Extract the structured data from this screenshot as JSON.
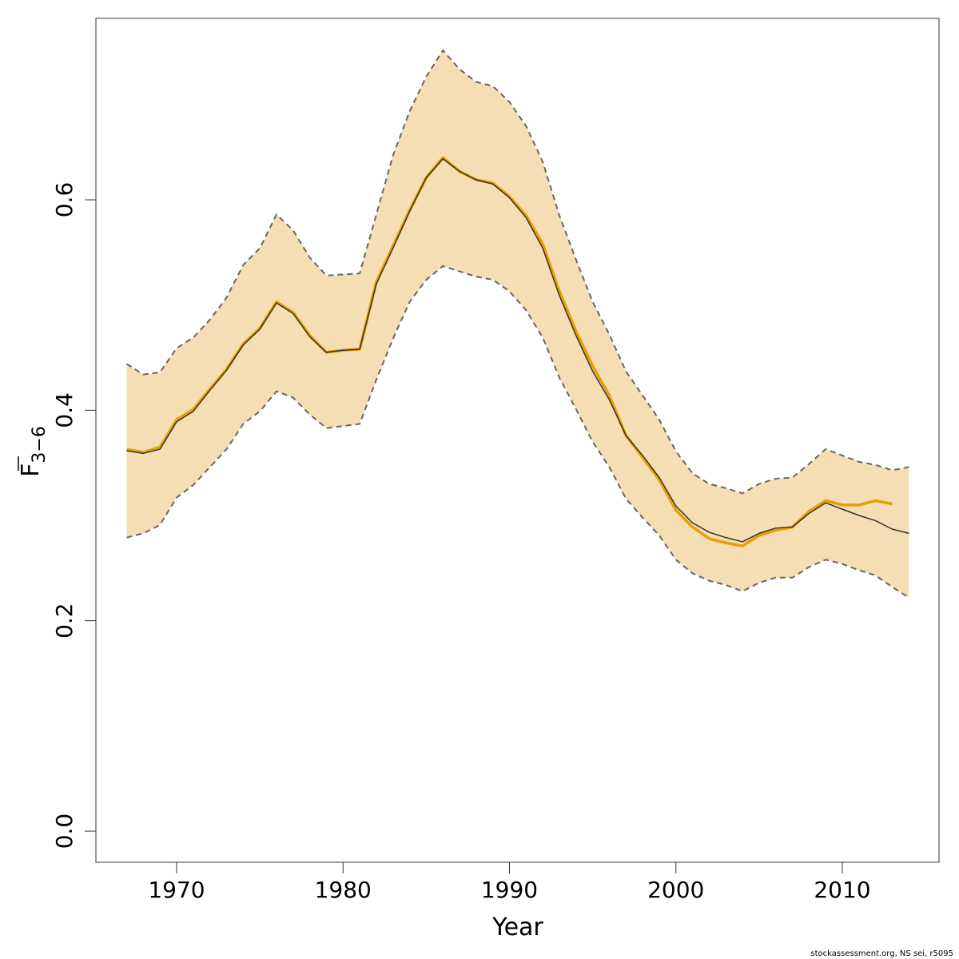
{
  "chart_data": {
    "type": "line",
    "xlabel": "Year",
    "ylabel": "F",
    "ylabel_sub": "3−6",
    "footnote": "stockassessment.org, NS sei, r5095",
    "xlim": [
      1965.15,
      2015.81
    ],
    "ylim": [
      -0.0296,
      0.7724
    ],
    "xticks": [
      1970,
      1980,
      1990,
      2000,
      2010
    ],
    "yticks": [
      {
        "value": 0,
        "label": "0.0"
      },
      0.2,
      0.4,
      0.6
    ],
    "x": [
      1967,
      1968,
      1969,
      1970,
      1971,
      1972,
      1973,
      1974,
      1975,
      1976,
      1977,
      1978,
      1979,
      1980,
      1981,
      1982,
      1983,
      1984,
      1985,
      1986,
      1987,
      1988,
      1989,
      1990,
      1991,
      1992,
      1993,
      1994,
      1995,
      1996,
      1997,
      1998,
      1999,
      2000,
      2001,
      2002,
      2003,
      2004,
      2005,
      2006,
      2007,
      2008,
      2009,
      2010,
      2011,
      2012,
      2013,
      2014
    ],
    "band": {
      "color": "#f5deb3",
      "line_color": "#666666",
      "upper": [
        0.444,
        0.434,
        0.436,
        0.459,
        0.469,
        0.486,
        0.507,
        0.538,
        0.554,
        0.586,
        0.571,
        0.545,
        0.528,
        0.529,
        0.53,
        0.586,
        0.642,
        0.684,
        0.717,
        0.742,
        0.724,
        0.712,
        0.708,
        0.693,
        0.67,
        0.636,
        0.585,
        0.543,
        0.503,
        0.472,
        0.437,
        0.414,
        0.391,
        0.361,
        0.34,
        0.33,
        0.326,
        0.321,
        0.33,
        0.335,
        0.336,
        0.349,
        0.363,
        0.357,
        0.351,
        0.348,
        0.343,
        0.346
      ],
      "lower": [
        0.279,
        0.283,
        0.291,
        0.317,
        0.329,
        0.346,
        0.363,
        0.387,
        0.399,
        0.418,
        0.412,
        0.396,
        0.383,
        0.385,
        0.387,
        0.429,
        0.468,
        0.503,
        0.524,
        0.537,
        0.532,
        0.527,
        0.524,
        0.513,
        0.495,
        0.469,
        0.431,
        0.401,
        0.37,
        0.346,
        0.316,
        0.298,
        0.281,
        0.258,
        0.245,
        0.238,
        0.234,
        0.228,
        0.236,
        0.241,
        0.241,
        0.251,
        0.258,
        0.254,
        0.248,
        0.243,
        0.232,
        0.222
      ]
    },
    "series": [
      {
        "color": "#e6a000",
        "width": 3.5,
        "values": [
          0.363,
          0.36,
          0.365,
          0.391,
          0.401,
          0.42,
          0.439,
          0.463,
          0.478,
          0.503,
          0.493,
          0.471,
          0.455,
          0.457,
          0.458,
          0.522,
          0.556,
          0.59,
          0.621,
          0.64,
          0.627,
          0.619,
          0.616,
          0.603,
          0.585,
          0.558,
          0.513,
          0.475,
          0.442,
          0.414,
          0.376,
          0.355,
          0.334,
          0.305,
          0.289,
          0.278,
          0.274,
          0.271,
          0.281,
          0.286,
          0.289,
          0.304,
          0.314,
          0.31,
          0.31,
          0.314,
          0.311,
          null
        ]
      },
      {
        "color": "#333333",
        "width": 1.5,
        "values": [
          0.3615,
          0.359,
          0.363,
          0.389,
          0.399,
          0.419,
          0.438,
          0.462,
          0.477,
          0.502,
          0.492,
          0.47,
          0.455,
          0.457,
          0.458,
          0.52,
          0.554,
          0.589,
          0.621,
          0.639,
          0.627,
          0.619,
          0.615,
          0.602,
          0.583,
          0.554,
          0.509,
          0.471,
          0.437,
          0.41,
          0.376,
          0.357,
          0.336,
          0.309,
          0.293,
          0.284,
          0.279,
          0.275,
          0.283,
          0.288,
          0.289,
          0.302,
          0.312,
          0.306,
          0.3,
          0.295,
          0.287,
          0.283
        ]
      }
    ]
  }
}
